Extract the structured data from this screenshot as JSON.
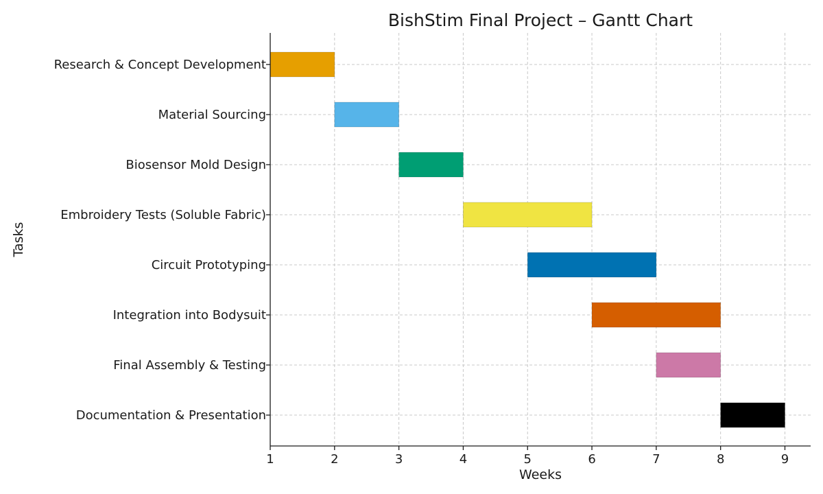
{
  "chart_data": {
    "type": "bar",
    "orientation": "horizontal",
    "title": "BishStim Final Project – Gantt Chart",
    "xlabel": "Weeks",
    "ylabel": "Tasks",
    "xlim": [
      1,
      9.4
    ],
    "xticks": [
      1,
      2,
      3,
      4,
      5,
      6,
      7,
      8,
      9
    ],
    "grid": true,
    "tasks": [
      {
        "name": "Research & Concept Development",
        "start": 1,
        "end": 2,
        "color": "#E69F00"
      },
      {
        "name": "Material Sourcing",
        "start": 2,
        "end": 3,
        "color": "#56B4E9"
      },
      {
        "name": "Biosensor Mold Design",
        "start": 3,
        "end": 4,
        "color": "#009E73"
      },
      {
        "name": "Embroidery Tests (Soluble Fabric)",
        "start": 4,
        "end": 6,
        "color": "#F0E442"
      },
      {
        "name": "Circuit Prototyping",
        "start": 5,
        "end": 7,
        "color": "#0072B2"
      },
      {
        "name": "Integration into Bodysuit",
        "start": 6,
        "end": 8,
        "color": "#D55E00"
      },
      {
        "name": "Final Assembly & Testing",
        "start": 7,
        "end": 8,
        "color": "#CC79A7"
      },
      {
        "name": "Documentation & Presentation",
        "start": 8,
        "end": 9,
        "color": "#000000"
      }
    ]
  }
}
